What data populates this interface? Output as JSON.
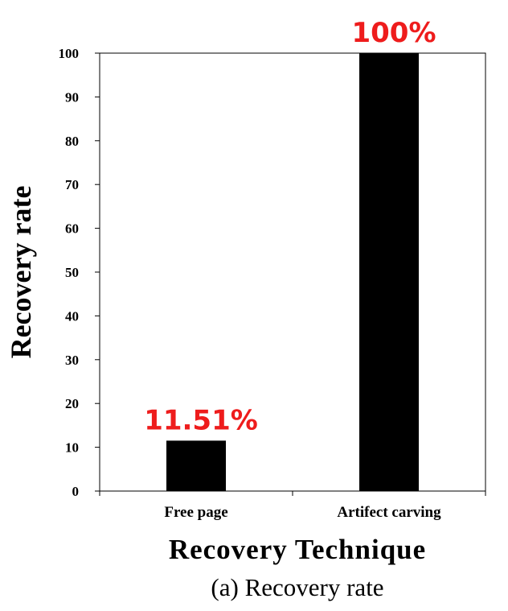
{
  "chart_data": {
    "type": "bar",
    "categories": [
      "Free page",
      "Artifect carving"
    ],
    "values": [
      11.51,
      100
    ],
    "data_labels": [
      "11.51%",
      "100%"
    ],
    "xlabel": "Recovery Technique",
    "ylabel": "Recovery rate",
    "ylim": [
      0,
      100
    ],
    "yticks": [
      0,
      10,
      20,
      30,
      40,
      50,
      60,
      70,
      80,
      90,
      100
    ],
    "grid": false,
    "legend": "none",
    "caption": "(a) Recovery rate",
    "bar_color": "#000000",
    "data_label_color": "#ee1c1c"
  }
}
